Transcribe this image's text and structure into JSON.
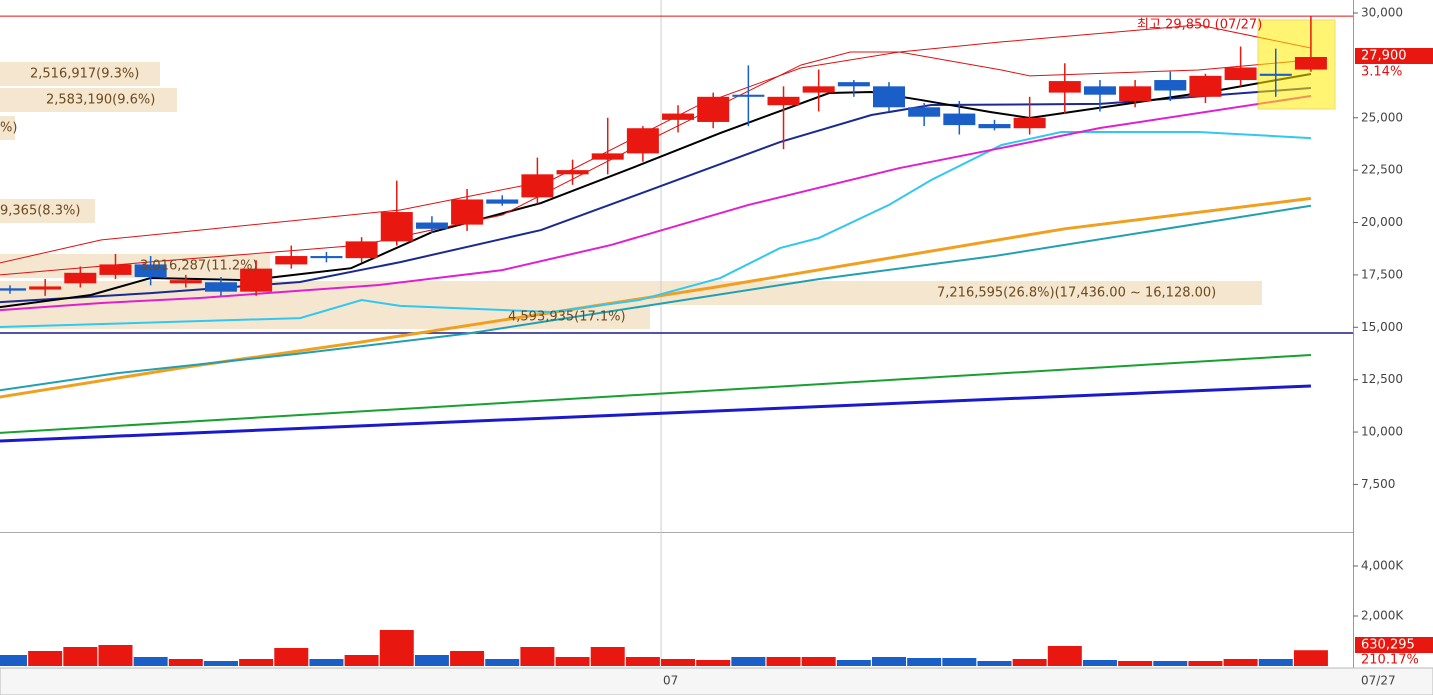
{
  "chart_data": [
    {
      "type": "candlestick",
      "categories": [
        null,
        null,
        null,
        null,
        null,
        null,
        null,
        null,
        null,
        null,
        null,
        null,
        null,
        null,
        null,
        null,
        null,
        null,
        null,
        "07",
        null,
        null,
        null,
        null,
        null,
        null,
        null,
        null,
        null,
        null,
        null,
        null,
        null,
        null,
        null,
        null,
        null,
        "07/27"
      ],
      "open": [
        16860,
        16800,
        17100,
        17500,
        18000,
        17100,
        17150,
        16700,
        18000,
        18400,
        18300,
        19100,
        20000,
        19900,
        21100,
        21200,
        22300,
        23000,
        23300,
        24900,
        24800,
        26100,
        25600,
        26200,
        26700,
        26500,
        25500,
        25200,
        24700,
        24500,
        26200,
        26500,
        25800,
        26800,
        26000,
        26800,
        27100,
        27300
      ],
      "high": [
        17000,
        17300,
        17900,
        18500,
        18400,
        17500,
        17400,
        18200,
        18900,
        18600,
        19300,
        22000,
        20300,
        21600,
        21300,
        23100,
        23000,
        25000,
        24600,
        25600,
        26200,
        27500,
        26500,
        27300,
        26800,
        26700,
        25700,
        25800,
        24900,
        26000,
        27600,
        26800,
        26800,
        27200,
        27100,
        28400,
        28300,
        29850
      ],
      "low": [
        16600,
        16500,
        16900,
        17300,
        17000,
        16900,
        16500,
        16500,
        17800,
        18100,
        18100,
        18900,
        19500,
        19600,
        20800,
        20900,
        21800,
        22300,
        22900,
        24300,
        24500,
        24600,
        23500,
        25300,
        26000,
        25300,
        24600,
        24200,
        24400,
        24200,
        25200,
        25300,
        25500,
        25800,
        25700,
        26500,
        26000,
        27200
      ],
      "close": [
        16750,
        16950,
        17600,
        18000,
        17400,
        17250,
        16700,
        17800,
        18400,
        18300,
        19100,
        20500,
        19700,
        21100,
        20900,
        22300,
        22500,
        23300,
        24500,
        25200,
        26000,
        26000,
        26000,
        26500,
        26500,
        25500,
        25050,
        24650,
        24500,
        25000,
        26750,
        26100,
        26500,
        26300,
        27000,
        27400,
        27000,
        27900
      ],
      "up_color": "#e8170f",
      "down_color": "#1a5ec8",
      "ylim": [
        5230,
        30620
      ],
      "yticks": [
        {
          "value": 30000,
          "label": "30,000"
        },
        {
          "value": 25000,
          "label": "25,000"
        },
        {
          "value": 22500,
          "label": "22,500"
        },
        {
          "value": 20000,
          "label": "20,000"
        },
        {
          "value": 17500,
          "label": "17,500"
        },
        {
          "value": 15000,
          "label": "15,000"
        },
        {
          "value": 12500,
          "label": "12,500"
        },
        {
          "value": 10000,
          "label": "10,000"
        },
        {
          "value": 7500,
          "label": "7,500"
        }
      ],
      "lines": [
        {
          "color": "#1a1acc",
          "width": 3,
          "x": [
            -0.3,
            37
          ],
          "values": [
            9570,
            12200
          ]
        },
        {
          "color": "#18a030",
          "width": 2,
          "x": [
            -0.3,
            37
          ],
          "values": [
            9960,
            13680
          ]
        },
        {
          "color": "#f0a020",
          "width": 3,
          "x": [
            -0.3,
            5,
            10,
            15,
            20,
            25,
            30,
            37
          ],
          "values": [
            11670,
            13100,
            14300,
            15600,
            16900,
            18300,
            19700,
            21150
          ]
        },
        {
          "color": "#20a0b0",
          "width": 2,
          "x": [
            -0.3,
            3,
            8,
            13,
            18,
            23,
            28,
            37
          ],
          "values": [
            11990,
            12800,
            13700,
            14700,
            16000,
            17300,
            18400,
            20800
          ]
        },
        {
          "color": "#30c8f0",
          "width": 2,
          "x": [
            -0.3,
            8.25,
            10,
            11.1,
            15.4,
            17.9,
            20.2,
            21.9,
            23,
            25,
            26.2,
            28.2,
            29.9,
            33.8,
            37
          ],
          "values": [
            15010,
            15440,
            16300,
            16020,
            15730,
            16300,
            17350,
            18780,
            19260,
            20840,
            22030,
            23700,
            24320,
            24320,
            24030
          ]
        },
        {
          "color": "#e020d0",
          "width": 2,
          "x": [
            -0.3,
            2.6,
            5.4,
            10.5,
            14,
            17.1,
            21,
            25.3,
            28.2,
            31,
            37
          ],
          "values": [
            15820,
            16160,
            16400,
            17020,
            17730,
            18930,
            20840,
            22600,
            23560,
            24510,
            26040
          ]
        },
        {
          "color": "#1a2a90",
          "width": 2,
          "x": [
            -0.3,
            4,
            8.25,
            11.1,
            15.1,
            18.2,
            21.9,
            24.5,
            26.2,
            31,
            37
          ],
          "values": [
            16200,
            16630,
            17160,
            18110,
            19640,
            21550,
            23840,
            25130,
            25610,
            25660,
            26420
          ]
        },
        {
          "color": "#000000",
          "width": 2,
          "x": [
            -0.3,
            2.3,
            4,
            6.8,
            9.7,
            12,
            15.1,
            17.9,
            20.2,
            23.3,
            24.5,
            25.9,
            27.9,
            29,
            31.9,
            34.4,
            37
          ],
          "values": [
            15960,
            16540,
            17350,
            17250,
            17820,
            19540,
            20930,
            22740,
            24270,
            26180,
            26230,
            25850,
            25270,
            24990,
            25700,
            26320,
            27090
          ]
        },
        {
          "color": "#e01010",
          "width": 1,
          "x": [
            -0.3,
            2.6,
            5.4,
            11.1,
            15.4,
            19.6,
            22.5,
            25.3,
            28.2,
            33.8,
            37
          ],
          "values": [
            18070,
            19170,
            19640,
            20600,
            22030,
            25610,
            27380,
            28140,
            28620,
            29430,
            28330
          ]
        },
        {
          "color": "#e01010",
          "width": 1,
          "x": [
            -0.3,
            4,
            8.25,
            10,
            14,
            18.2,
            22.5,
            23.9,
            25.3,
            28.2,
            29,
            33.8,
            37
          ],
          "values": [
            17500,
            18120,
            18690,
            18930,
            20360,
            23950,
            27520,
            28140,
            28140,
            27280,
            27000,
            27280,
            27760
          ]
        }
      ],
      "hline": {
        "value": 14730,
        "color": "#1a1a8c"
      },
      "annotations": [
        "2,516,917(9.3%)",
        "2,583,190(9.6%)",
        "%)",
        "9,365(8.3%)",
        "3,016,287(11.2%)",
        "7,216,595(26.8%)(17,436.00 ~ 16,128.00)",
        "4,593,935(17.1%)"
      ],
      "high_note": "최고 29,850 (07/27)",
      "price_tag": "27,900",
      "change_tag": "3.14%"
    },
    {
      "type": "bar",
      "values": [
        440,
        600,
        760,
        840,
        360,
        280,
        200,
        280,
        720,
        280,
        440,
        1440,
        440,
        600,
        280,
        760,
        360,
        760,
        360,
        280,
        240,
        360,
        360,
        360,
        240,
        360,
        320,
        320,
        200,
        280,
        800,
        240,
        200,
        200,
        200,
        280,
        280,
        630.295
      ],
      "ylim": [
        0,
        5320
      ],
      "yticks": [
        {
          "value": 4000,
          "label": "4,000K"
        },
        {
          "value": 2000,
          "label": "2,000K"
        }
      ],
      "volume_tag": "630,295",
      "ratio_tag": "210.17%"
    }
  ]
}
